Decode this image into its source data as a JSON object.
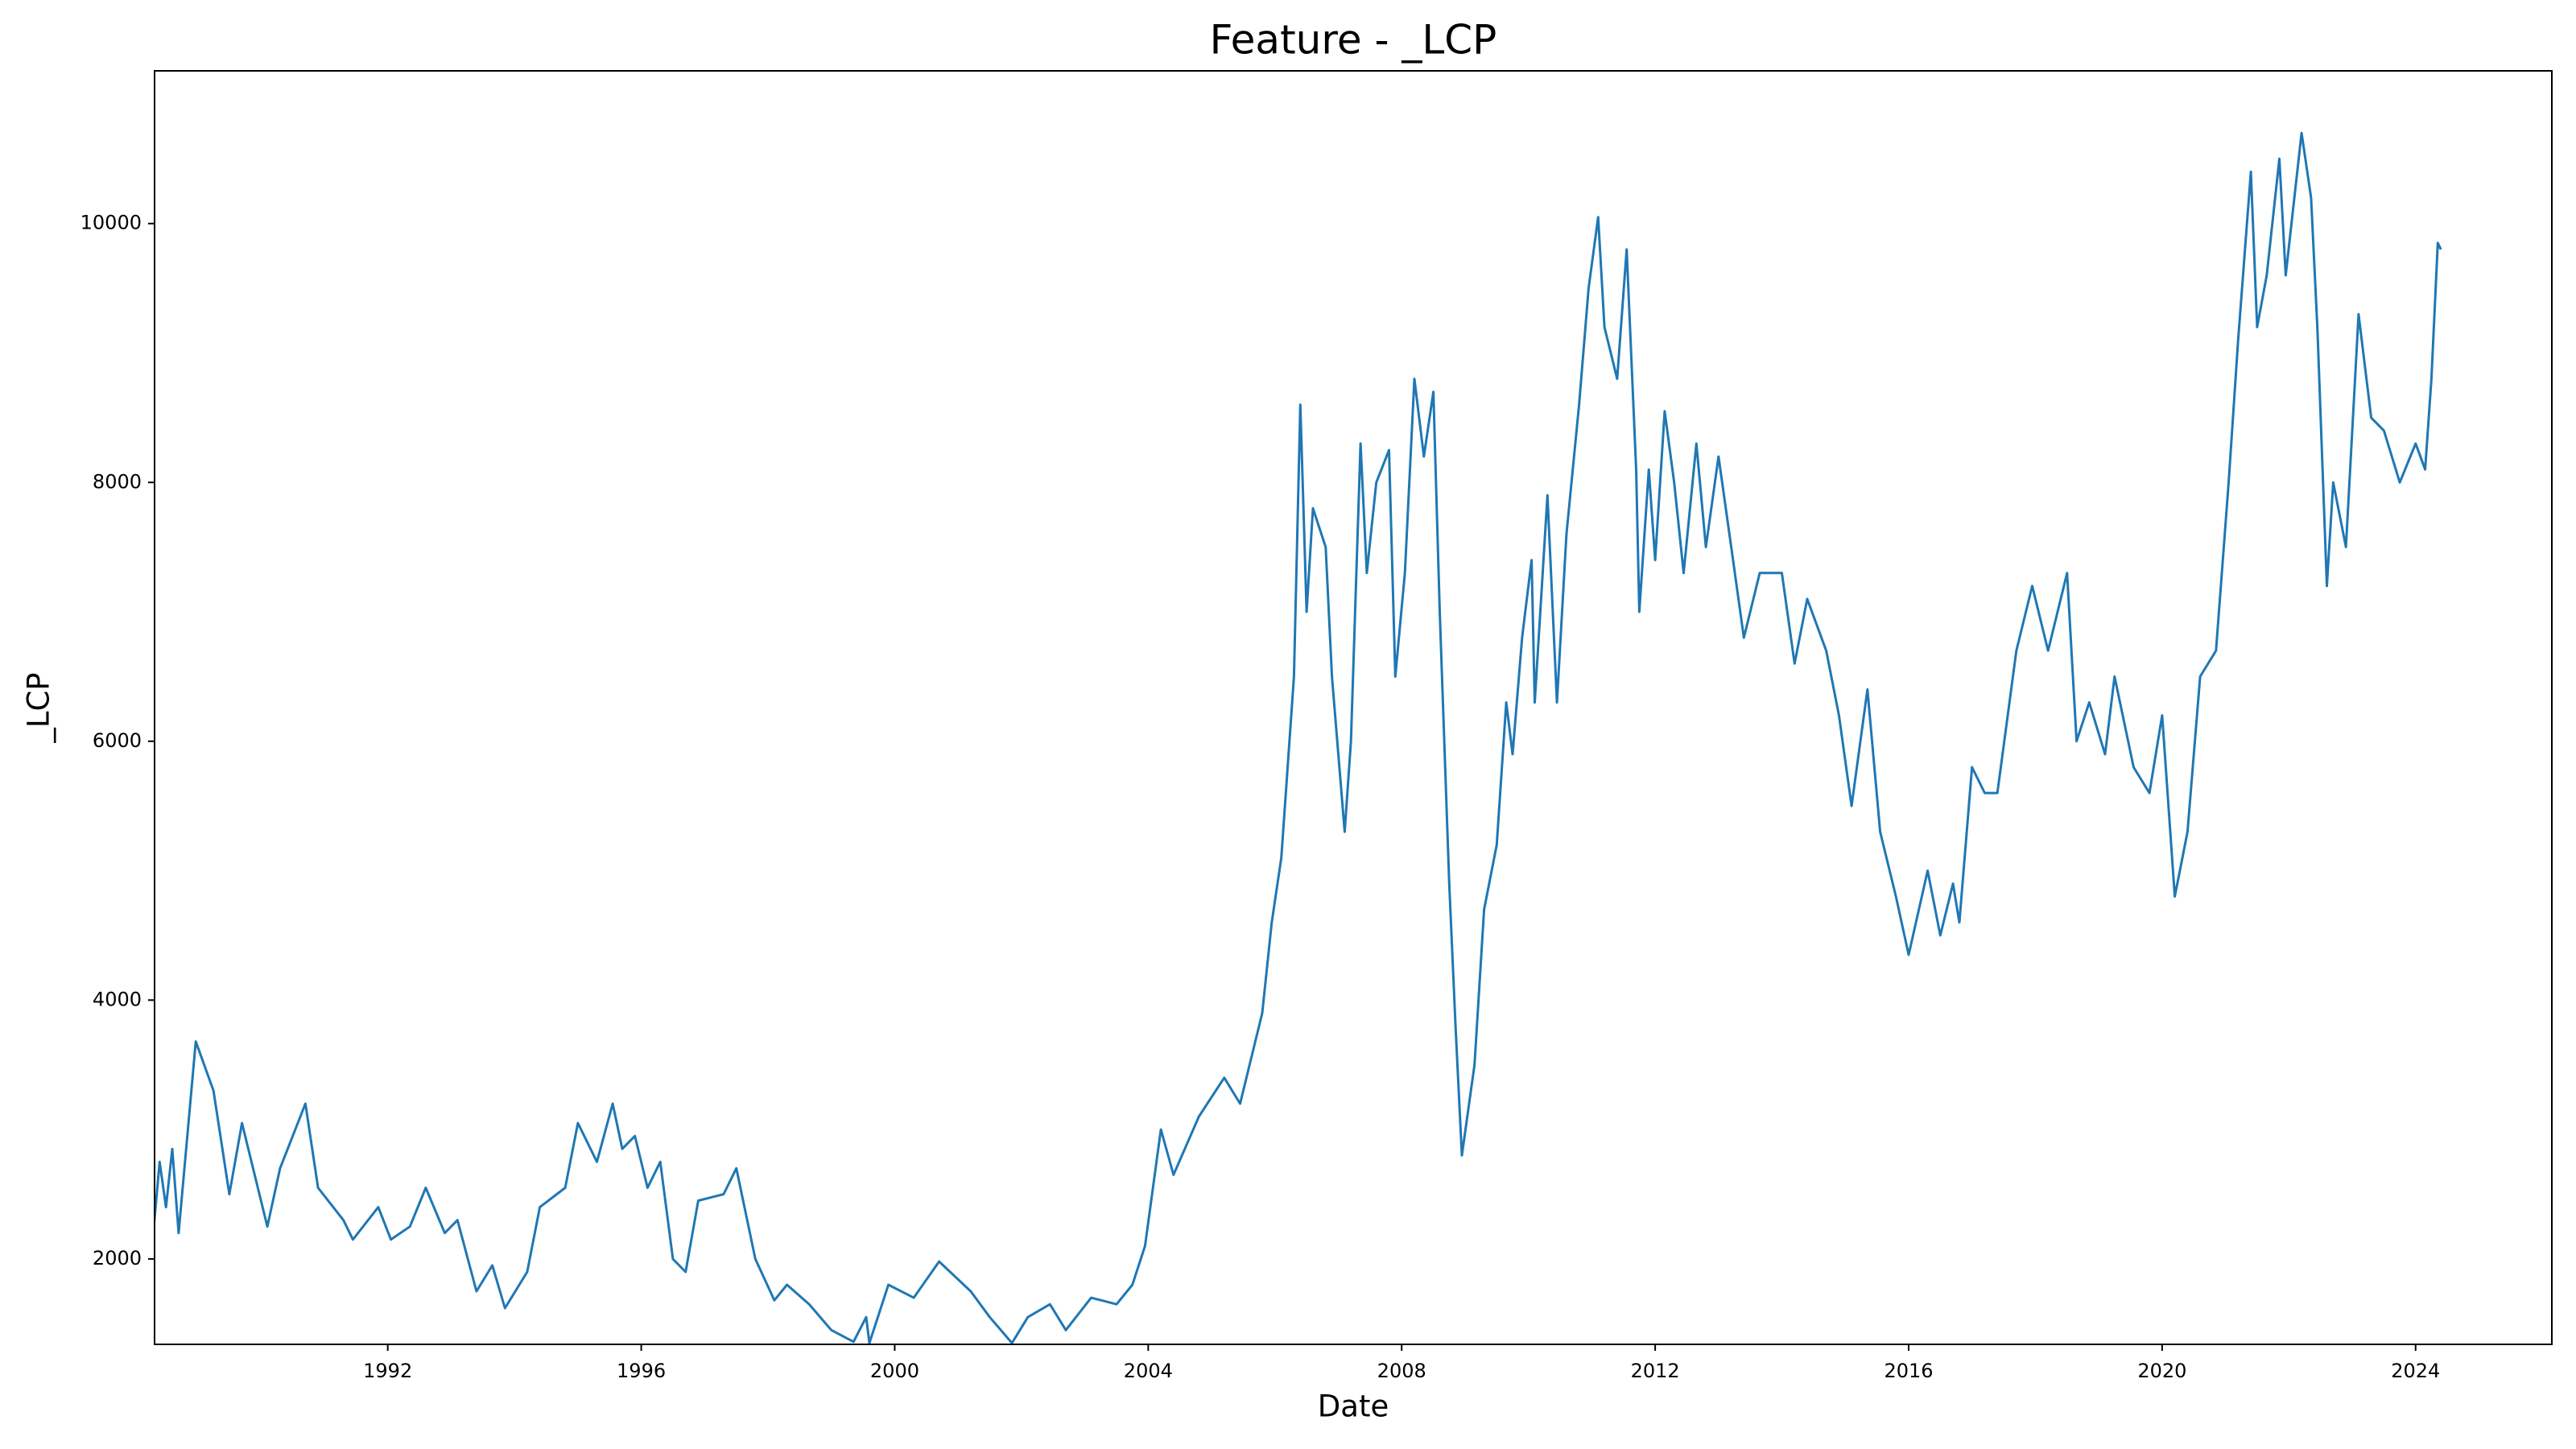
{
  "chart_data": {
    "type": "line",
    "title": "Feature - _LCP",
    "xlabel": "Date",
    "ylabel": "_LCP",
    "color": "#1f77b4",
    "x": [
      1988.3,
      1988.4,
      1988.5,
      1988.6,
      1988.7,
      1988.97,
      1989.25,
      1989.5,
      1989.7,
      1990.1,
      1990.3,
      1990.7,
      1990.9,
      1991.3,
      1991.45,
      1991.85,
      1992.05,
      1992.35,
      1992.6,
      1992.9,
      1993.1,
      1993.4,
      1993.65,
      1993.85,
      1994.2,
      1994.4,
      1994.8,
      1995.0,
      1995.3,
      1995.55,
      1995.7,
      1995.9,
      1996.1,
      1996.3,
      1996.5,
      1996.7,
      1996.9,
      1997.3,
      1997.5,
      1997.8,
      1998.1,
      1998.3,
      1998.65,
      1999.0,
      1999.35,
      1999.55,
      1999.6,
      1999.9,
      2000.3,
      2000.7,
      2001.2,
      2001.5,
      2001.85,
      2002.1,
      2002.45,
      2002.7,
      2003.1,
      2003.5,
      2003.75,
      2003.95,
      2004.2,
      2004.4,
      2004.8,
      2005.2,
      2005.45,
      2005.8,
      2005.95,
      2006.1,
      2006.3,
      2006.4,
      2006.5,
      2006.6,
      2006.8,
      2006.9,
      2007.1,
      2007.2,
      2007.35,
      2007.45,
      2007.6,
      2007.8,
      2007.9,
      2008.05,
      2008.2,
      2008.35,
      2008.5,
      2008.6,
      2008.75,
      2008.85,
      2008.95,
      2009.15,
      2009.3,
      2009.5,
      2009.65,
      2009.75,
      2009.9,
      2010.05,
      2010.1,
      2010.3,
      2010.45,
      2010.6,
      2010.8,
      2010.95,
      2011.1,
      2011.2,
      2011.4,
      2011.55,
      2011.7,
      2011.75,
      2011.9,
      2012.0,
      2012.15,
      2012.3,
      2012.45,
      2012.65,
      2012.8,
      2013.0,
      2013.2,
      2013.4,
      2013.65,
      2014.0,
      2014.2,
      2014.4,
      2014.7,
      2014.9,
      2015.1,
      2015.35,
      2015.55,
      2015.8,
      2016.0,
      2016.3,
      2016.5,
      2016.7,
      2016.8,
      2017.0,
      2017.2,
      2017.4,
      2017.7,
      2017.95,
      2018.2,
      2018.5,
      2018.65,
      2018.85,
      2019.1,
      2019.25,
      2019.55,
      2019.8,
      2020.0,
      2020.2,
      2020.4,
      2020.6,
      2020.85,
      2021.05,
      2021.2,
      2021.4,
      2021.5,
      2021.65,
      2021.85,
      2021.95,
      2022.2,
      2022.35,
      2022.45,
      2022.6,
      2022.7,
      2022.9,
      2023.1,
      2023.3,
      2023.5,
      2023.75,
      2024.0,
      2024.15,
      2024.25,
      2024.35,
      2024.4
    ],
    "values": [
      2200,
      2750,
      2400,
      2850,
      2200,
      3680,
      3300,
      2500,
      3050,
      2250,
      2700,
      3200,
      2550,
      2300,
      2150,
      2400,
      2150,
      2250,
      2550,
      2200,
      2300,
      1750,
      1950,
      1620,
      1900,
      2400,
      2550,
      3050,
      2750,
      3200,
      2850,
      2950,
      2550,
      2750,
      2000,
      1900,
      2450,
      2500,
      2700,
      2000,
      1680,
      1800,
      1650,
      1450,
      1360,
      1550,
      1350,
      1800,
      1700,
      1980,
      1750,
      1550,
      1350,
      1550,
      1650,
      1450,
      1700,
      1650,
      1800,
      2100,
      3000,
      2650,
      3100,
      3400,
      3200,
      3900,
      4600,
      5100,
      6500,
      8600,
      7000,
      7800,
      7500,
      6500,
      5300,
      6000,
      8300,
      7300,
      8000,
      8250,
      6500,
      7300,
      8800,
      8200,
      8700,
      7000,
      4900,
      3800,
      2800,
      3500,
      4700,
      5200,
      6300,
      5900,
      6800,
      7400,
      6300,
      7900,
      6300,
      7600,
      8600,
      9500,
      10050,
      9200,
      8800,
      9800,
      8100,
      7000,
      8100,
      7400,
      8550,
      8000,
      7300,
      8300,
      7500,
      8200,
      7500,
      6800,
      7300,
      7300,
      6600,
      7100,
      6700,
      6200,
      5500,
      6400,
      5300,
      4800,
      4350,
      5000,
      4500,
      4900,
      4600,
      5800,
      5600,
      5600,
      6700,
      7200,
      6700,
      7300,
      6000,
      6300,
      5900,
      6500,
      5800,
      5600,
      6200,
      4800,
      5300,
      6500,
      6700,
      8000,
      9100,
      10400,
      9200,
      9600,
      10500,
      9600,
      10700,
      10200,
      9200,
      7200,
      8000,
      7500,
      9300,
      8500,
      8400,
      8000,
      8300,
      8100,
      8800,
      9850,
      9800
    ],
    "xlim": [
      1988.32,
      2026.15
    ],
    "xticks": [
      1992,
      1996,
      2000,
      2004,
      2008,
      2012,
      2016,
      2020,
      2024
    ],
    "ylim": [
      1340,
      11180
    ],
    "yticks": [
      2000,
      4000,
      6000,
      8000,
      10000
    ]
  }
}
